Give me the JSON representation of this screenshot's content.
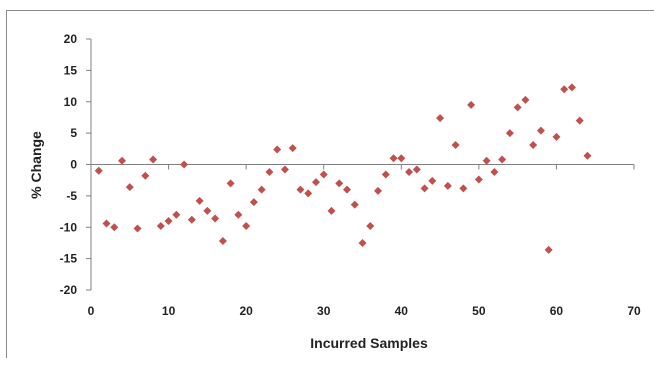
{
  "chart_data": {
    "type": "scatter",
    "title": "",
    "xlabel": "Incurred Samples",
    "ylabel": "% Change",
    "xlim": [
      0,
      70
    ],
    "ylim": [
      -20,
      20
    ],
    "xticks": [
      0,
      10,
      20,
      30,
      40,
      50,
      60,
      70
    ],
    "yticks": [
      20,
      15,
      10,
      5,
      0,
      -5,
      -10,
      -15,
      -20
    ],
    "grid": false,
    "legend": "none",
    "marker": "diamond",
    "marker_color": "#c0504d",
    "series": [
      {
        "points": [
          [
            1,
            -1
          ],
          [
            2,
            -9.4
          ],
          [
            3,
            -10
          ],
          [
            4,
            0.6
          ],
          [
            5,
            -3.6
          ],
          [
            6,
            -10.2
          ],
          [
            7,
            -1.8
          ],
          [
            8,
            0.8
          ],
          [
            9,
            -9.8
          ],
          [
            10,
            -9
          ],
          [
            11,
            -8
          ],
          [
            12,
            0
          ],
          [
            13,
            -8.8
          ],
          [
            14,
            -5.8
          ],
          [
            15,
            -7.4
          ],
          [
            16,
            -8.6
          ],
          [
            17,
            -12.2
          ],
          [
            18,
            -3
          ],
          [
            19,
            -8
          ],
          [
            20,
            -9.8
          ],
          [
            21,
            -6
          ],
          [
            22,
            -4
          ],
          [
            23,
            -1.2
          ],
          [
            24,
            2.4
          ],
          [
            25,
            -0.8
          ],
          [
            26,
            2.6
          ],
          [
            27,
            -4
          ],
          [
            28,
            -4.6
          ],
          [
            29,
            -2.8
          ],
          [
            30,
            -1.6
          ],
          [
            31,
            -7.4
          ],
          [
            32,
            -3
          ],
          [
            33,
            -4
          ],
          [
            34,
            -6.4
          ],
          [
            35,
            -12.5
          ],
          [
            36,
            -9.8
          ],
          [
            37,
            -4.2
          ],
          [
            38,
            -1.6
          ],
          [
            39,
            1
          ],
          [
            40,
            1
          ],
          [
            41,
            -1.2
          ],
          [
            42,
            -0.8
          ],
          [
            43,
            -3.8
          ],
          [
            44,
            -2.6
          ],
          [
            45,
            7.4
          ],
          [
            46,
            -3.4
          ],
          [
            47,
            3.1
          ],
          [
            48,
            -3.8
          ],
          [
            49,
            9.5
          ],
          [
            50,
            -2.4
          ],
          [
            51,
            0.6
          ],
          [
            52,
            -1.2
          ],
          [
            53,
            0.8
          ],
          [
            54,
            5
          ],
          [
            55,
            9.1
          ],
          [
            56,
            10.3
          ],
          [
            57,
            3.1
          ],
          [
            58,
            5.4
          ],
          [
            59,
            -13.6
          ],
          [
            60,
            4.4
          ],
          [
            61,
            12
          ],
          [
            62,
            12.3
          ],
          [
            63,
            7
          ],
          [
            64,
            1.4
          ]
        ]
      }
    ]
  }
}
